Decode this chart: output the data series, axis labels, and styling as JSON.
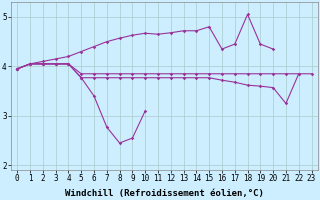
{
  "xlabel": "Windchill (Refroidissement éolien,°C)",
  "xlim": [
    -0.5,
    23.5
  ],
  "ylim": [
    1.9,
    5.3
  ],
  "yticks": [
    2,
    3,
    4,
    5
  ],
  "xticks": [
    0,
    1,
    2,
    3,
    4,
    5,
    6,
    7,
    8,
    9,
    10,
    11,
    12,
    13,
    14,
    15,
    16,
    17,
    18,
    19,
    20,
    21,
    22,
    23
  ],
  "background_color": "#cceeff",
  "line_color": "#993399",
  "grid_color": "#aacccc",
  "tick_fontsize": 5.5,
  "label_fontsize": 6.5,
  "series": [
    {
      "x": [
        0,
        1,
        2,
        3,
        4,
        5,
        6,
        7,
        8,
        9,
        10,
        11,
        12,
        13,
        14,
        15,
        16,
        17,
        18,
        19,
        20
      ],
      "y": [
        3.95,
        4.05,
        4.1,
        4.15,
        4.2,
        4.3,
        4.4,
        4.5,
        4.57,
        4.63,
        4.67,
        4.65,
        4.68,
        4.72,
        4.72,
        4.8,
        4.35,
        4.45,
        5.05,
        4.45,
        4.35
      ]
    },
    {
      "x": [
        0,
        1,
        2,
        3,
        4,
        5,
        6,
        7,
        8,
        9,
        10,
        11,
        12,
        13,
        14,
        15,
        16,
        17,
        18,
        19,
        20,
        21,
        22,
        23
      ],
      "y": [
        3.95,
        4.05,
        4.05,
        4.05,
        4.05,
        3.85,
        3.85,
        3.85,
        3.85,
        3.85,
        3.85,
        3.85,
        3.85,
        3.85,
        3.85,
        3.85,
        3.85,
        3.85,
        3.85,
        3.85,
        3.85,
        3.85,
        3.85,
        3.85
      ]
    },
    {
      "x": [
        0,
        1,
        2,
        3,
        4,
        5,
        6,
        7,
        8,
        9,
        10,
        11,
        12,
        13,
        14,
        15,
        16,
        17,
        18,
        19,
        20,
        21,
        22
      ],
      "y": [
        3.95,
        4.05,
        4.05,
        4.05,
        4.05,
        3.77,
        3.77,
        3.77,
        3.77,
        3.77,
        3.77,
        3.77,
        3.77,
        3.77,
        3.77,
        3.77,
        3.72,
        3.68,
        3.62,
        3.6,
        3.57,
        3.25,
        3.85
      ]
    },
    {
      "x": [
        0,
        1,
        2,
        3,
        4,
        5,
        6,
        7,
        8,
        9,
        10
      ],
      "y": [
        3.95,
        4.05,
        4.05,
        4.05,
        4.05,
        3.77,
        3.4,
        2.77,
        2.45,
        2.55,
        3.1
      ]
    }
  ]
}
